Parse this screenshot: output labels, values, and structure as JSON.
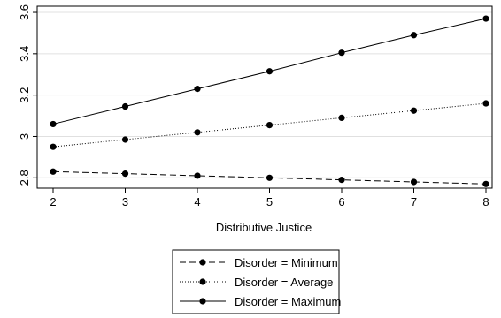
{
  "chart_data": {
    "type": "line",
    "title": "",
    "xlabel": "Distributive Justice",
    "ylabel": "",
    "x": [
      2,
      3,
      4,
      5,
      6,
      7,
      8
    ],
    "xlim": [
      2,
      8
    ],
    "ylim": [
      2.75,
      3.63
    ],
    "xticks": [
      "2",
      "3",
      "4",
      "5",
      "6",
      "7",
      "8"
    ],
    "yticks": [
      {
        "value": 2.8,
        "label": "2.8"
      },
      {
        "value": 3.0,
        "label": "3"
      },
      {
        "value": 3.2,
        "label": "3.2"
      },
      {
        "value": 3.4,
        "label": "3.4"
      },
      {
        "value": 3.6,
        "label": "3.6"
      }
    ],
    "grid": "horizontal",
    "legend_position": "bottom",
    "series": [
      {
        "name": "Disorder = Minimum",
        "style": "dashed",
        "color": "#000000",
        "values": [
          2.83,
          2.82,
          2.81,
          2.8,
          2.79,
          2.78,
          2.77
        ]
      },
      {
        "name": "Disorder = Average",
        "style": "dotted",
        "color": "#000000",
        "values": [
          2.95,
          2.985,
          3.02,
          3.055,
          3.09,
          3.125,
          3.16
        ]
      },
      {
        "name": "Disorder = Maximum",
        "style": "solid",
        "color": "#000000",
        "values": [
          3.06,
          3.145,
          3.23,
          3.315,
          3.405,
          3.49,
          3.57
        ]
      }
    ]
  }
}
